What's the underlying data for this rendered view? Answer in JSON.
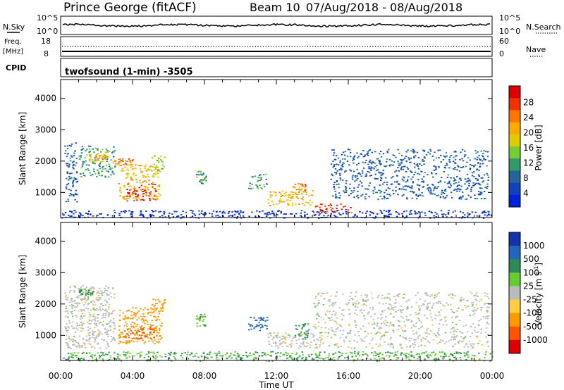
{
  "header": {
    "station": "Prince George (fitACF)",
    "beam": "Beam 10",
    "date_range": "07/Aug/2018 - 08/Aug/2018"
  },
  "top_panels": {
    "nsky_label": "N.Sky",
    "nsky_ticks": [
      "10^5",
      "10^0"
    ],
    "nsearch_label": "N.Search",
    "nsearch_ticks": [
      "10^5",
      "10^0"
    ],
    "freq_label": "Freq.",
    "freq_unit": "[MHz]",
    "freq_ticks": [
      "18",
      "8"
    ],
    "nave_label": "Nave",
    "nave_ticks": [
      "60",
      "0"
    ],
    "cpid_label": "CPID",
    "cpid_value": "twofsound (1-min) -3505"
  },
  "power_colorbar": {
    "label": "Power [dB]",
    "ticks": [
      "28",
      "24",
      "20",
      "16",
      "12",
      "8",
      "4"
    ],
    "colors": [
      "#dd0000",
      "#ee3300",
      "#ff7700",
      "#ffaa00",
      "#ddcc00",
      "#77cc33",
      "#339966",
      "#226699",
      "#1144bb",
      "#0022dd"
    ]
  },
  "velocity_colorbar": {
    "label": "Velocity [m s^-1]",
    "label_main": "Velocity [m s",
    "label_sup": "-1",
    "label_end": "]",
    "ticks": [
      "1000",
      "500",
      "100",
      "25",
      "-25",
      "-100",
      "-500",
      "-1000"
    ],
    "colors": [
      "#1133aa",
      "#2266bb",
      "#2e8b57",
      "#66cc33",
      "#bbbbbb",
      "#ffcc44",
      "#ff9900",
      "#ff5500",
      "#dd0000"
    ]
  },
  "chart_data": [
    {
      "type": "heatmap",
      "title": "Power",
      "xlabel": "",
      "ylabel": "Slant Range [km]",
      "x_range_hours": [
        0,
        24
      ],
      "ylim": [
        200,
        4600
      ],
      "y_ticks": [
        1000,
        2000,
        3000,
        4000
      ],
      "regions": [
        {
          "t0": 0.2,
          "t1": 0.9,
          "r0": 700,
          "r1": 2600,
          "level": 8
        },
        {
          "t0": 1.0,
          "t1": 3.0,
          "r0": 1500,
          "r1": 2500,
          "level": 12
        },
        {
          "t0": 1.5,
          "t1": 2.6,
          "r0": 2000,
          "r1": 2300,
          "level": 20
        },
        {
          "t0": 2.8,
          "t1": 4.0,
          "r0": 1900,
          "r1": 2100,
          "level": 24
        },
        {
          "t0": 3.2,
          "t1": 5.5,
          "r0": 800,
          "r1": 1900,
          "level": 20
        },
        {
          "t0": 3.6,
          "t1": 5.3,
          "r0": 750,
          "r1": 1300,
          "level": 28
        },
        {
          "t0": 5.0,
          "t1": 5.8,
          "r0": 1700,
          "r1": 2200,
          "level": 16
        },
        {
          "t0": 7.5,
          "t1": 8.1,
          "r0": 1300,
          "r1": 1700,
          "level": 12
        },
        {
          "t0": 10.4,
          "t1": 11.5,
          "r0": 1100,
          "r1": 1600,
          "level": 12
        },
        {
          "t0": 11.5,
          "t1": 14.0,
          "r0": 600,
          "r1": 1100,
          "level": 20
        },
        {
          "t0": 12.8,
          "t1": 13.6,
          "r0": 800,
          "r1": 1300,
          "level": 24
        },
        {
          "t0": 14.0,
          "t1": 16.2,
          "r0": 350,
          "r1": 650,
          "level": 28
        },
        {
          "t0": 15.0,
          "t1": 23.8,
          "r0": 800,
          "r1": 2400,
          "level": 8
        },
        {
          "t0": 0.0,
          "t1": 24.0,
          "r0": 200,
          "r1": 450,
          "level": 4
        }
      ]
    },
    {
      "type": "heatmap",
      "title": "Velocity",
      "xlabel": "Time UT",
      "ylabel": "Slant Range [km]",
      "x_range_hours": [
        0,
        24
      ],
      "x_ticks": [
        "00:00",
        "04:00",
        "08:00",
        "12:00",
        "16:00",
        "20:00",
        "00:00"
      ],
      "ylim": [
        200,
        4600
      ],
      "y_ticks": [
        1000,
        2000,
        3000,
        4000
      ],
      "regions": [
        {
          "t0": 0.2,
          "t1": 3.0,
          "r0": 600,
          "r1": 2600,
          "velocity": 0
        },
        {
          "t0": 1.0,
          "t1": 1.8,
          "r0": 2300,
          "r1": 2500,
          "velocity": 80
        },
        {
          "t0": 3.2,
          "t1": 5.6,
          "r0": 750,
          "r1": 1900,
          "velocity": -300
        },
        {
          "t0": 3.5,
          "t1": 5.2,
          "r0": 900,
          "r1": 1300,
          "velocity": -600
        },
        {
          "t0": 5.0,
          "t1": 5.8,
          "r0": 1700,
          "r1": 2200,
          "velocity": -150
        },
        {
          "t0": 7.5,
          "t1": 8.1,
          "r0": 1300,
          "r1": 1700,
          "velocity": 50
        },
        {
          "t0": 10.4,
          "t1": 11.5,
          "r0": 1100,
          "r1": 1600,
          "velocity": 300
        },
        {
          "t0": 11.5,
          "t1": 14.0,
          "r0": 600,
          "r1": 1100,
          "velocity": 0
        },
        {
          "t0": 13.0,
          "t1": 13.8,
          "r0": 900,
          "r1": 1400,
          "velocity": 200
        },
        {
          "t0": 14.0,
          "t1": 23.8,
          "r0": 600,
          "r1": 2400,
          "velocity": 0
        },
        {
          "t0": 0.0,
          "t1": 24.0,
          "r0": 200,
          "r1": 500,
          "velocity": 60
        }
      ]
    }
  ]
}
